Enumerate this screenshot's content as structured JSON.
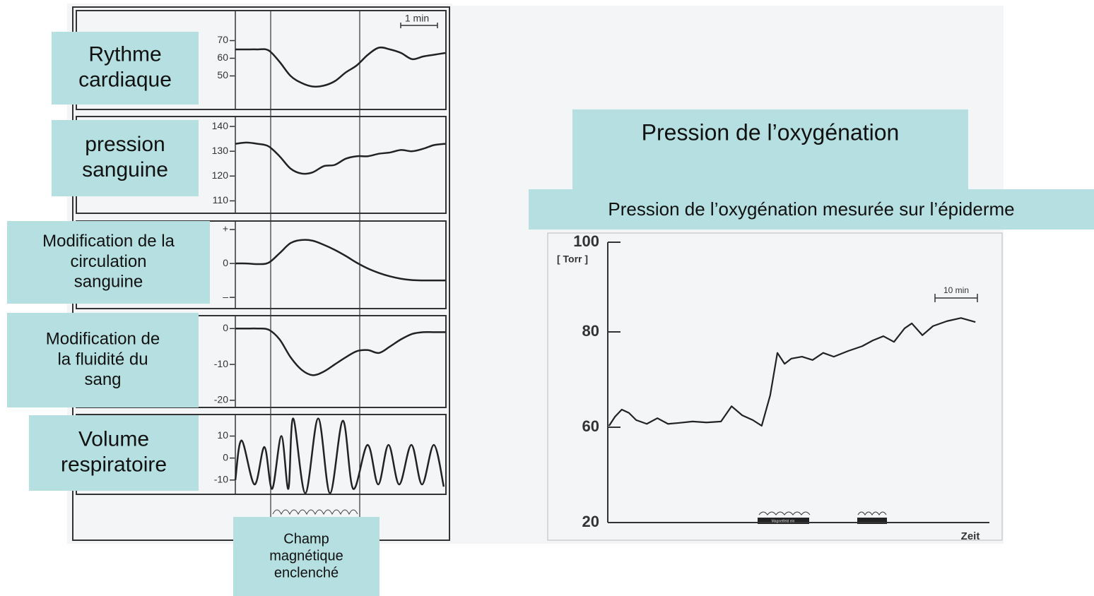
{
  "chart_data": [
    {
      "type": "line",
      "label": [
        "Rythme",
        "cardiaque"
      ],
      "annotation": "1 min",
      "x": [
        0,
        0.3,
        0.6,
        0.9,
        1.2,
        1.5,
        1.8,
        2.1,
        2.4,
        2.7,
        3,
        3.3,
        3.6,
        3.9,
        4.2,
        4.5,
        4.8,
        5.1,
        5.4,
        5.7
      ],
      "xlim": [
        0,
        5.7
      ],
      "ylim": [
        31,
        87
      ],
      "yticks": [
        50,
        60,
        70
      ],
      "series": [
        {
          "color": "#222222",
          "values": [
            65,
            65,
            65,
            64.5,
            58,
            50,
            46,
            44,
            44.5,
            47,
            52,
            56,
            62,
            66,
            65,
            63,
            59.5,
            61,
            62,
            63
          ]
        }
      ]
    },
    {
      "type": "line",
      "label": [
        "pression",
        "sanguine"
      ],
      "x": [
        0,
        0.3,
        0.6,
        0.9,
        1.2,
        1.5,
        1.8,
        2.1,
        2.4,
        2.7,
        3,
        3.3,
        3.6,
        3.9,
        4.2,
        4.5,
        4.8,
        5.1,
        5.4,
        5.7
      ],
      "xlim": [
        0,
        5.7
      ],
      "ylim": [
        105,
        144
      ],
      "yticks": [
        110,
        120,
        130,
        140
      ],
      "series": [
        {
          "color": "#222222",
          "values": [
            133,
            133.5,
            133,
            132,
            128,
            123,
            121,
            121.5,
            124,
            124.5,
            127,
            128,
            128,
            129,
            129.5,
            130.5,
            130,
            131,
            132.5,
            133
          ]
        }
      ]
    },
    {
      "type": "line",
      "label": [
        "Modification de la",
        "circulation",
        "sanguine"
      ],
      "x": [
        0,
        0.3,
        0.6,
        0.9,
        1.2,
        1.5,
        1.8,
        2.1,
        2.4,
        2.7,
        3,
        3.3,
        3.6,
        3.9,
        4.2,
        4.5,
        4.8,
        5.1,
        5.4,
        5.7
      ],
      "xlim": [
        0,
        5.7
      ],
      "ylim": [
        -1.33,
        1.25
      ],
      "yticks": [
        {
          "value": -1,
          "label": "–"
        },
        0,
        {
          "value": 1,
          "label": "+"
        }
      ],
      "series": [
        {
          "color": "#222222",
          "values": [
            0,
            0,
            -0.02,
            0.02,
            0.3,
            0.6,
            0.69,
            0.67,
            0.55,
            0.4,
            0.22,
            0.02,
            -0.15,
            -0.28,
            -0.38,
            -0.45,
            -0.49,
            -0.5,
            -0.5,
            -0.5
          ]
        }
      ]
    },
    {
      "type": "line",
      "label": [
        "Modification de",
        "la fluidité du",
        "sang"
      ],
      "x": [
        0,
        0.3,
        0.6,
        0.9,
        1.2,
        1.5,
        1.8,
        2.1,
        2.4,
        2.7,
        3,
        3.3,
        3.6,
        3.9,
        4.2,
        4.5,
        4.8,
        5.1,
        5.4,
        5.7
      ],
      "xlim": [
        0,
        5.7
      ],
      "ylim": [
        -22,
        3.6
      ],
      "yticks": [
        -20,
        -10,
        0
      ],
      "series": [
        {
          "color": "#222222",
          "values": [
            0,
            0,
            0,
            -0.3,
            -3,
            -8,
            -11.5,
            -13,
            -12,
            -10,
            -8,
            -6.3,
            -6,
            -6.8,
            -5,
            -3,
            -1.5,
            -1,
            -1,
            -1
          ]
        }
      ]
    },
    {
      "type": "line",
      "label": [
        "Volume",
        "respiratoire"
      ],
      "x": [
        0,
        0.17,
        0.52,
        0.79,
        1.0,
        1.25,
        1.44,
        1.57,
        1.9,
        2.25,
        2.57,
        2.92,
        3.2,
        3.59,
        3.88,
        4.16,
        4.45,
        4.78,
        5.07,
        5.39,
        5.66
      ],
      "xlim": [
        0,
        5.7
      ],
      "ylim": [
        -16.5,
        19.8
      ],
      "yticks": [
        -10,
        0,
        10
      ],
      "series": [
        {
          "color": "#222222",
          "values": [
            -10,
            8,
            -12,
            5,
            -14,
            10,
            -14,
            18,
            -16,
            18,
            -16,
            17,
            -14,
            6,
            -12,
            6,
            -12,
            6,
            -12,
            6,
            -13
          ]
        }
      ]
    },
    {
      "type": "line",
      "title": "Pression de l’oxygénation",
      "subtitle": "Pression de l’oxygénation mesurée sur l’épiderme",
      "ylabel": "[ Torr ]",
      "xlabel": "Zeit",
      "annotation": "10 min",
      "marker_label": "Magnetfeld ein",
      "x": [
        0.3,
        1.7,
        3.3,
        5,
        6.7,
        9.2,
        11.7,
        14.2,
        16.7,
        20,
        23.3,
        26.7,
        29.2,
        31.7,
        34.2,
        36.3,
        38.3,
        40,
        41.7,
        43.3,
        45.8,
        48.3,
        50.8,
        53.3,
        56.7,
        60,
        62.5,
        65,
        67.5,
        70,
        71.7,
        74.2,
        76.7,
        80,
        83.3,
        86.7
      ],
      "xlim": [
        0,
        90
      ],
      "ylim": [
        20,
        100
      ],
      "yticks": [
        20,
        60,
        80,
        100
      ],
      "series": [
        {
          "color": "#222222",
          "values": [
            60.3,
            62.2,
            63.7,
            63.0,
            61.5,
            60.7,
            61.9,
            60.7,
            60.9,
            61.2,
            61.0,
            61.2,
            64.4,
            62.5,
            61.5,
            60.3,
            66.7,
            75.6,
            73.3,
            74.4,
            74.8,
            74.1,
            75.6,
            74.8,
            76.0,
            77.0,
            78.2,
            79.1,
            77.9,
            80.8,
            81.9,
            79.3,
            81.3,
            82.4,
            83.1,
            82.2
          ]
        }
      ]
    }
  ],
  "field_label": [
    "Champ",
    "magnétique",
    "enclenché"
  ]
}
